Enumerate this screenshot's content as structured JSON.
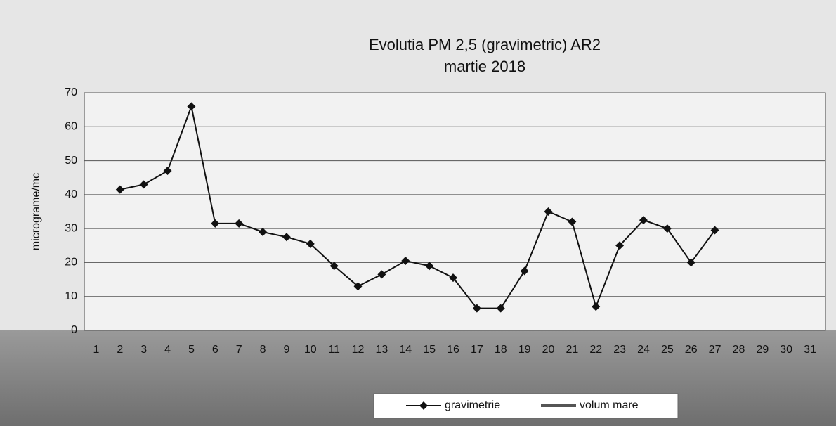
{
  "chart_data": {
    "type": "line",
    "title": "Evolutia PM 2,5 (gravimetric)  AR2",
    "subtitle": "martie 2018",
    "y_label": "micrograme/mc",
    "categories": [
      "1",
      "2",
      "3",
      "4",
      "5",
      "6",
      "7",
      "8",
      "9",
      "10",
      "11",
      "12",
      "13",
      "14",
      "15",
      "16",
      "17",
      "18",
      "19",
      "20",
      "21",
      "22",
      "23",
      "24",
      "25",
      "26",
      "27",
      "28",
      "29",
      "30",
      "31"
    ],
    "series": [
      {
        "name": "gravimetrie",
        "color": "#111111",
        "values": [
          null,
          41.5,
          43,
          47,
          66,
          31.5,
          31.5,
          29,
          27.5,
          25.5,
          19,
          13,
          16.5,
          20.5,
          19,
          15.5,
          6.5,
          6.5,
          17.5,
          35,
          32,
          7,
          25,
          32.5,
          30,
          20,
          29.5,
          null,
          null,
          null,
          null
        ]
      },
      {
        "name": "volum mare",
        "color": "#555555",
        "values": [
          null,
          null,
          null,
          null,
          null,
          null,
          null,
          null,
          null,
          null,
          null,
          null,
          null,
          null,
          null,
          null,
          null,
          null,
          null,
          null,
          null,
          null,
          null,
          null,
          null,
          null,
          null,
          null,
          null,
          null,
          null
        ]
      }
    ],
    "ylim": [
      0,
      70
    ],
    "yticks": [
      0,
      10,
      20,
      30,
      40,
      50,
      60,
      70
    ],
    "grid": true
  }
}
